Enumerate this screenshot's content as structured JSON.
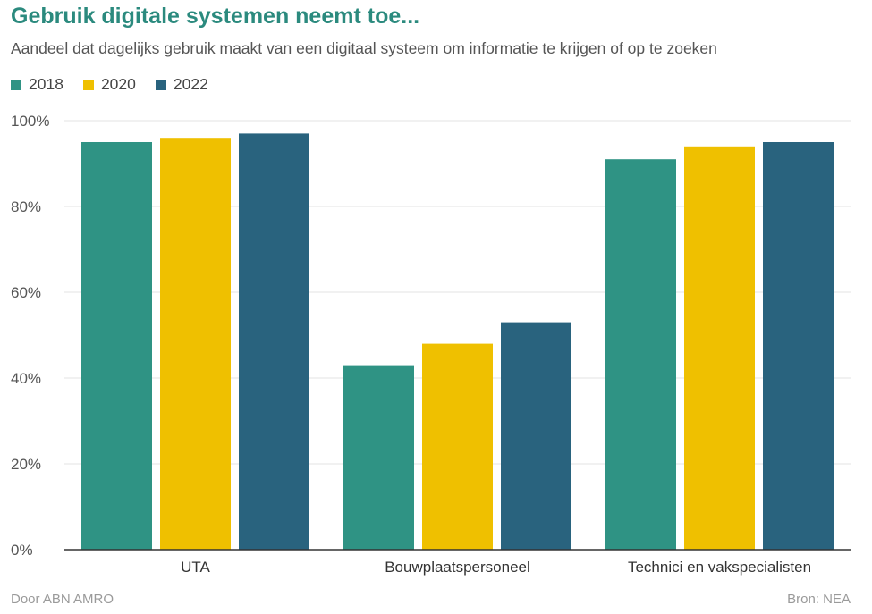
{
  "title": "Gebruik digitale systemen neemt toe...",
  "subtitle": "Aandeel dat dagelijks gebruik maakt van een digitaal systeem om informatie te krijgen of op te zoeken",
  "footer": {
    "left": "Door ABN AMRO",
    "right": "Bron:  NEA"
  },
  "chart_data": {
    "type": "bar",
    "categories": [
      "UTA",
      "Bouwplaatspersoneel",
      "Technici en vakspecialisten"
    ],
    "series": [
      {
        "name": "2018",
        "color": "#2f9384",
        "values": [
          95,
          43,
          91
        ]
      },
      {
        "name": "2020",
        "color": "#efc000",
        "values": [
          96,
          48,
          94
        ]
      },
      {
        "name": "2022",
        "color": "#29637e",
        "values": [
          97,
          53,
          95
        ]
      }
    ],
    "yticks": [
      "0%",
      "20%",
      "40%",
      "60%",
      "80%",
      "100%"
    ],
    "ylim": [
      0,
      100
    ],
    "grid": true,
    "legend_position": "top-left"
  }
}
